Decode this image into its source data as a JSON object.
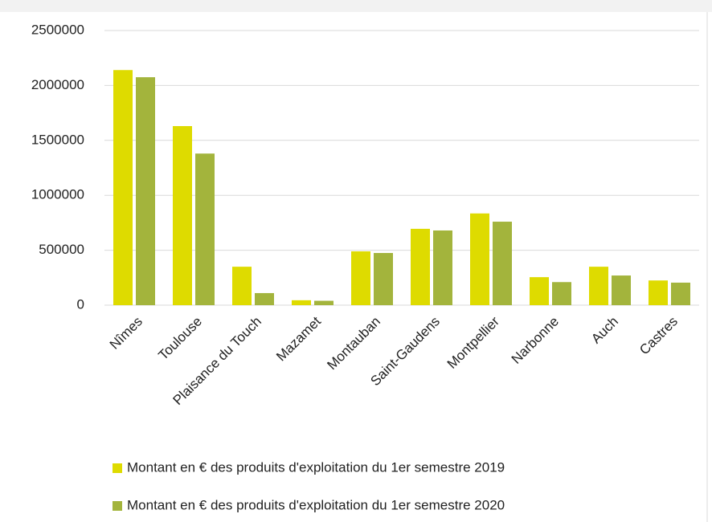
{
  "chart_data": {
    "type": "bar",
    "categories": [
      "Nîmes",
      "Toulouse",
      "Plaisance du Touch",
      "Mazamet",
      "Montauban",
      "Saint-Gaudens",
      "Montpellier",
      "Narbonne",
      "Auch",
      "Castres"
    ],
    "series": [
      {
        "name": "Montant en € des produits d'exploitation du 1er semestre 2019",
        "color": "#dedb00",
        "values": [
          2140000,
          1630000,
          350000,
          45000,
          490000,
          695000,
          835000,
          255000,
          350000,
          225000
        ]
      },
      {
        "name": "Montant en € des produits d'exploitation du 1er semestre 2020",
        "color": "#a3b43c",
        "values": [
          2075000,
          1380000,
          110000,
          40000,
          475000,
          680000,
          760000,
          210000,
          270000,
          205000
        ]
      }
    ],
    "ylim": [
      0,
      2500000
    ],
    "yticks": [
      0,
      500000,
      1000000,
      1500000,
      2000000,
      2500000
    ],
    "grid": true
  }
}
